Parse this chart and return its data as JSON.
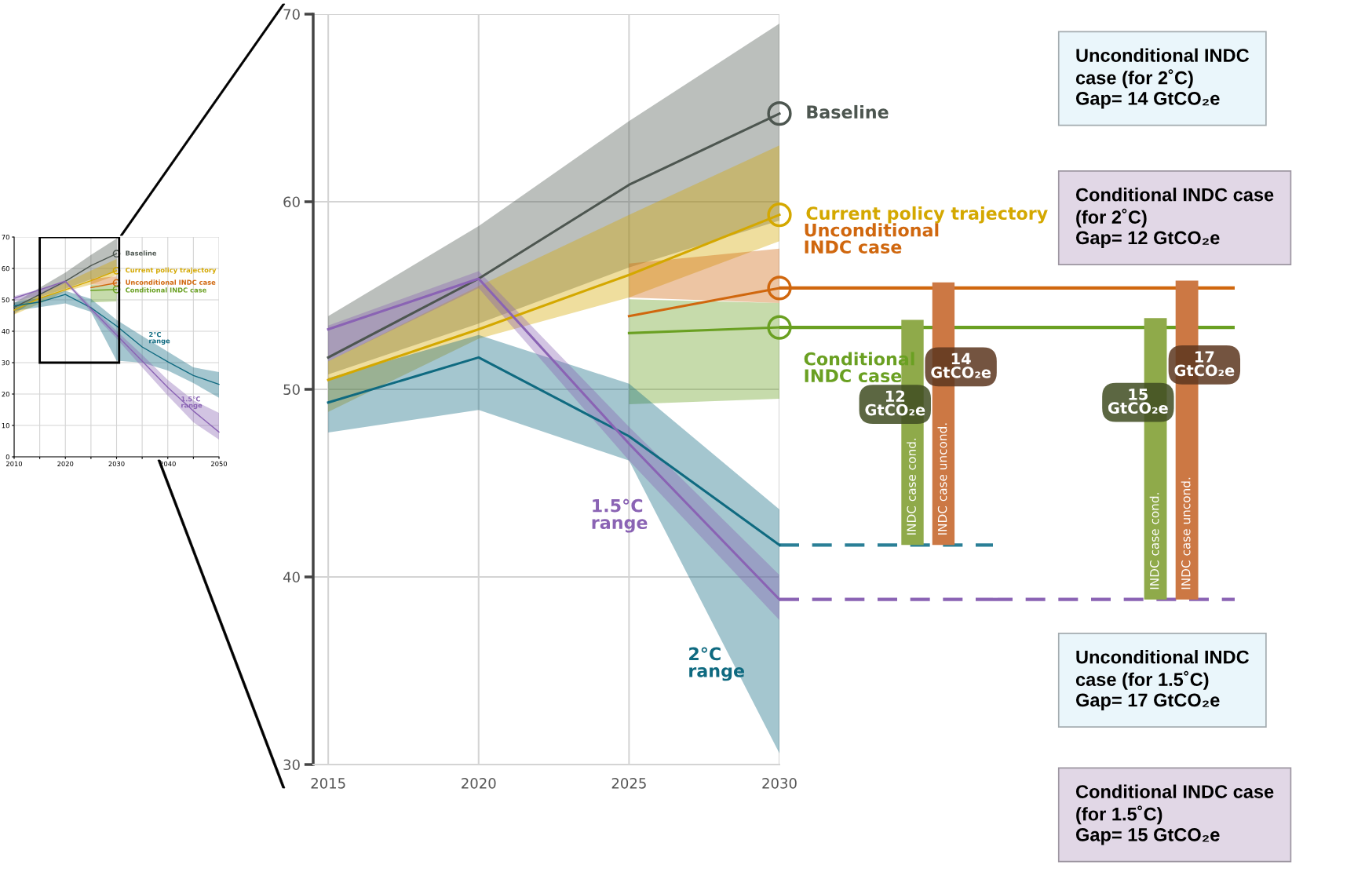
{
  "chart_data": [
    {
      "type": "line",
      "xlim": [
        2010,
        2050
      ],
      "ylim": [
        0,
        70
      ],
      "grid": true,
      "xticks": [
        2010,
        {
          "value": 2015,
          "label": null
        },
        2020,
        {
          "value": 2025,
          "label": null
        },
        2030,
        {
          "value": 2035,
          "label": null
        },
        2040,
        {
          "value": 2045,
          "label": null
        },
        2050
      ],
      "yticks": [
        0,
        10,
        20,
        30,
        40,
        50,
        60,
        70
      ],
      "series": [
        {
          "name": "Baseline",
          "color": "#4d5650",
          "x": [
            2010,
            2015,
            2020,
            2025,
            2030
          ],
          "values": [
            47.6,
            51.7,
            55.9,
            60.9,
            64.7
          ],
          "lower": [
            45.5,
            50.8,
            53.5,
            56.5,
            59.0
          ],
          "upper": [
            49.0,
            53.9,
            58.7,
            64.3,
            69.5
          ]
        },
        {
          "name": "Current policy trajectory",
          "color": "#d4a800",
          "x": [
            2010,
            2015,
            2020,
            2025,
            2030
          ],
          "values": [
            46.7,
            50.5,
            53.2,
            56.1,
            59.3
          ],
          "lower": [
            45.3,
            48.8,
            52.7,
            54.9,
            57.9
          ],
          "upper": [
            48.0,
            51.5,
            55.5,
            59.3,
            63.0
          ]
        },
        {
          "name": "Unconditional INDC case",
          "color": "#d0670e",
          "x": [
            2025,
            2030
          ],
          "values": [
            53.9,
            55.4
          ],
          "lower": [
            54.9,
            54.6
          ],
          "upper": [
            56.7,
            57.5
          ]
        },
        {
          "name": "Conditional INDC case",
          "color": "#6aa022",
          "x": [
            2025,
            2030
          ],
          "values": [
            53.0,
            53.3
          ],
          "lower": [
            49.2,
            49.5
          ],
          "upper": [
            54.8,
            54.6
          ]
        },
        {
          "name": "2°C\nrange",
          "color": "#0f6a80",
          "x": [
            2010,
            2015,
            2020,
            2025,
            2030,
            2035,
            2040,
            2045,
            2050
          ],
          "values": [
            48.1,
            49.3,
            51.7,
            47.5,
            41.7,
            35.0,
            30.3,
            25.9,
            23.1
          ],
          "lower": [
            46.5,
            47.7,
            48.9,
            46.2,
            30.6,
            30.0,
            27.5,
            23.5,
            18.8
          ],
          "upper": [
            49.2,
            50.6,
            52.9,
            50.3,
            43.6,
            38.5,
            33.5,
            28.5,
            27.0
          ]
        },
        {
          "name": "1.5°C\nrange",
          "color": "#8a63b4",
          "x": [
            2010,
            2015,
            2020,
            2025,
            2030,
            2035,
            2040,
            2045,
            2050
          ],
          "values": [
            50.5,
            53.2,
            55.9,
            47.1,
            38.8,
            30.5,
            22.1,
            14.6,
            7.9
          ],
          "lower": [
            49.5,
            51.5,
            55.4,
            46.2,
            37.7,
            28.5,
            19.5,
            11.0,
            5.5
          ],
          "upper": [
            51.2,
            53.4,
            56.3,
            48.0,
            40.1,
            32.5,
            24.5,
            18.0,
            14.0
          ]
        }
      ]
    },
    {
      "type": "line",
      "xlim": [
        2014.5,
        2030
      ],
      "ylim": [
        30,
        70
      ],
      "grid": true,
      "xticks": [
        2015,
        2020,
        2025,
        2030
      ],
      "yticks": [
        30,
        40,
        50,
        60,
        70
      ],
      "series": [
        {
          "name": "Baseline",
          "color": "#4d5650",
          "x": [
            2015,
            2020,
            2025,
            2030
          ],
          "values": [
            51.7,
            55.9,
            60.9,
            64.7
          ],
          "lower": [
            50.8,
            53.5,
            56.5,
            59.0
          ],
          "upper": [
            53.9,
            58.7,
            64.3,
            69.5
          ]
        },
        {
          "name": "Current policy trajectory",
          "color": "#d4a800",
          "x": [
            2015,
            2020,
            2025,
            2030
          ],
          "values": [
            50.5,
            53.2,
            56.1,
            59.3
          ],
          "lower": [
            48.8,
            52.7,
            54.9,
            57.9
          ],
          "upper": [
            51.5,
            55.5,
            59.3,
            63.0
          ]
        },
        {
          "name": "Unconditional\nINDC case",
          "color": "#d0670e",
          "x": [
            2025,
            2030
          ],
          "values": [
            53.9,
            55.4
          ],
          "lower": [
            54.9,
            54.6
          ],
          "upper": [
            56.7,
            57.5
          ]
        },
        {
          "name": "Conditional\nINDC case",
          "color": "#6aa022",
          "x": [
            2025,
            2030
          ],
          "values": [
            53.0,
            53.3
          ],
          "lower": [
            49.2,
            49.5
          ],
          "upper": [
            54.8,
            54.6
          ]
        },
        {
          "name": "2°C\nrange",
          "color": "#0f6a80",
          "x": [
            2015,
            2020,
            2025,
            2030
          ],
          "values": [
            49.3,
            51.7,
            47.5,
            41.7
          ],
          "lower": [
            47.7,
            48.9,
            46.2,
            30.6
          ],
          "upper": [
            50.6,
            52.9,
            50.3,
            43.6
          ]
        },
        {
          "name": "1.5°C\nrange",
          "color": "#8a63b4",
          "x": [
            2015,
            2020,
            2025,
            2030
          ],
          "values": [
            53.2,
            55.9,
            47.1,
            38.8
          ],
          "lower": [
            51.5,
            55.4,
            46.2,
            37.7
          ],
          "upper": [
            53.4,
            56.3,
            48.0,
            40.1
          ]
        }
      ]
    },
    {
      "type": "bar",
      "categories": [
        "INDC case cond.",
        "INDC case uncond."
      ],
      "base": [
        41.7,
        41.7
      ],
      "values": [
        12,
        14
      ],
      "colors": [
        "#8faa4a",
        "#cc7844"
      ],
      "value_labels": [
        "12\nGtCO₂e",
        "14\nGtCO₂e"
      ],
      "ylim": [
        30,
        70
      ],
      "tick_labels": false,
      "ref_lines": [
        {
          "axis": "y",
          "value": 55.4,
          "color": "#d0670e",
          "line_style": "solid"
        },
        {
          "axis": "y",
          "value": 53.3,
          "color": "#6aa022",
          "line_style": "solid"
        },
        {
          "axis": "y",
          "value": 41.7,
          "color": "#2a7f96",
          "line_style": "dashed"
        },
        {
          "axis": "y",
          "value": 38.8,
          "color": "#8a63b4",
          "line_style": "dashed"
        }
      ]
    },
    {
      "type": "bar",
      "categories": [
        "INDC case cond.",
        "INDC case uncond."
      ],
      "base": [
        38.8,
        38.8
      ],
      "values": [
        15,
        17
      ],
      "colors": [
        "#8faa4a",
        "#cc7844"
      ],
      "value_labels": [
        "15\nGtCO₂e",
        "17\nGtCO₂e"
      ],
      "ylim": [
        30,
        70
      ],
      "tick_labels": false,
      "ref_lines": [
        {
          "axis": "y",
          "value": 55.4,
          "color": "#d0670e",
          "line_style": "solid"
        },
        {
          "axis": "y",
          "value": 53.3,
          "color": "#6aa022",
          "line_style": "solid"
        },
        {
          "axis": "y",
          "value": 38.8,
          "color": "#8a63b4",
          "line_style": "dashed"
        }
      ]
    },
    {
      "type": "other",
      "colors": [
        "#eaf6fb",
        "#e1d7e6",
        "#eaf6fb",
        "#e1d7e6"
      ],
      "annotations": [
        "Unconditional INDC\ncase (for 2˚C)\nGap= 14 GtCO₂e",
        "Conditional INDC case\n(for 2˚C)\nGap= 12 GtCO₂e",
        "Unconditional INDC\ncase (for 1.5˚C)\nGap= 17 GtCO₂e",
        "Conditional INDC case\n(for 1.5˚C)\nGap= 15 GtCO₂e"
      ]
    }
  ]
}
